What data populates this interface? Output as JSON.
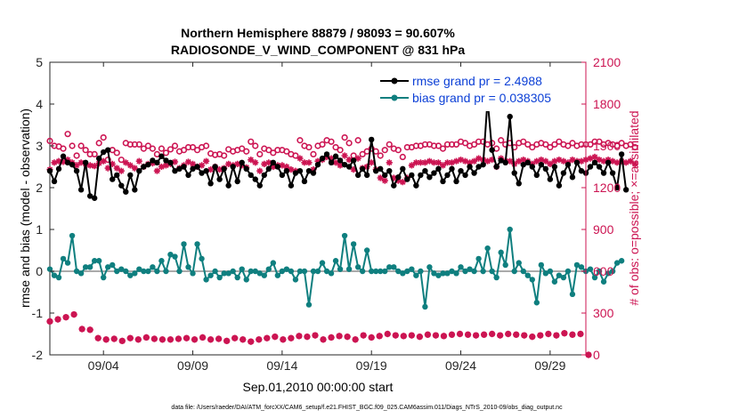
{
  "chart_data": {
    "type": "line",
    "title_line1": "Northern Hemisphere 88879 / 98093 = 90.607%",
    "title_line2": "RADIOSONDE_V_WIND_COMPONENT @ 831 hPa",
    "xlabel": "Sep.01,2010 00:00:00 start",
    "ylabel_left": "rmse and bias (model - observation)",
    "ylabel_right": "# of obs: o=possible; ×=assimilated",
    "footnote": "data file: /Users/raeder/DAI/ATM_forcXX/CAM6_setup/f.e21.FHIST_BGC.f09_025.CAM6assim.011/Diags_NTrS_2010-09/obs_diag_output.nc",
    "xlim": [
      1.0,
      31.0
    ],
    "ylim_left": [
      -2,
      5
    ],
    "ylim_right": [
      0,
      2100
    ],
    "x_ticks": [
      4,
      9,
      14,
      19,
      24,
      29
    ],
    "x_tick_labels": [
      "09/04",
      "09/09",
      "09/14",
      "09/19",
      "09/24",
      "09/29"
    ],
    "y_ticks_left": [
      -2,
      -1,
      0,
      1,
      2,
      3,
      4,
      5
    ],
    "y_tick_labels_left": [
      "-2",
      "-1",
      "0",
      "1",
      "2",
      "3",
      "4",
      "5"
    ],
    "y_ticks_right": [
      0,
      300,
      600,
      900,
      1200,
      1500,
      1800,
      2100
    ],
    "y_tick_labels_right": [
      "0",
      "300",
      "600",
      "900",
      "1200",
      "1500",
      "1800",
      "2100"
    ],
    "x_start": 1.0,
    "x_step": 0.25,
    "legend": [
      {
        "label": "rmse grand pr = 2.4988",
        "color": "#000000"
      },
      {
        "label": "bias grand pr = 0.038305",
        "color": "#0f7f7f"
      }
    ],
    "colors": {
      "rmse": "#000000",
      "bias": "#0f7f7f",
      "obs": "#cc1452",
      "zero_line": "#aaaaaa",
      "legend_text": "#0b3fd6"
    },
    "series": [
      {
        "name": "rmse",
        "values": [
          2.4,
          2.15,
          2.45,
          2.75,
          2.6,
          2.55,
          2.4,
          1.95,
          2.6,
          1.8,
          1.75,
          2.7,
          2.85,
          2.9,
          2.2,
          2.3,
          2.05,
          1.9,
          2.3,
          1.95,
          2.4,
          2.5,
          2.55,
          2.65,
          2.6,
          2.75,
          2.65,
          2.6,
          2.4,
          2.45,
          2.5,
          2.3,
          2.45,
          2.5,
          2.35,
          2.4,
          2.1,
          2.5,
          2.2,
          2.45,
          2.05,
          2.5,
          2.15,
          2.6,
          2.45,
          2.3,
          2.2,
          2.05,
          2.3,
          2.45,
          2.6,
          2.5,
          2.3,
          2.4,
          2.05,
          2.35,
          2.4,
          2.15,
          2.4,
          2.35,
          2.55,
          2.7,
          2.8,
          2.6,
          2.75,
          2.65,
          2.55,
          2.5,
          2.65,
          2.3,
          2.45,
          2.3,
          3.15,
          2.4,
          2.45,
          2.3,
          2.4,
          2.05,
          2.25,
          2.45,
          2.2,
          2.3,
          2.05,
          2.3,
          2.4,
          2.25,
          2.35,
          2.45,
          2.15,
          2.3,
          2.45,
          2.15,
          2.4,
          2.3,
          2.5,
          2.35,
          2.5,
          2.55,
          4.1,
          2.9,
          2.5,
          2.65,
          2.6,
          3.7,
          2.35,
          2.1,
          2.55,
          2.6,
          2.5,
          2.3,
          2.55,
          2.45,
          2.2,
          2.5,
          2.05,
          2.35,
          2.55,
          2.25,
          2.6,
          2.4,
          2.35,
          2.5,
          2.6,
          2.5,
          2.35,
          2.6,
          2.35,
          2.0,
          2.8,
          1.95
        ]
      },
      {
        "name": "bias",
        "values": [
          0.05,
          -0.1,
          -0.15,
          0.3,
          0.2,
          0.85,
          0.0,
          -0.05,
          0.1,
          0.1,
          0.25,
          0.25,
          -0.15,
          0.1,
          0.15,
          0.0,
          0.05,
          0.0,
          -0.1,
          -0.05,
          0.05,
          0.0,
          0.0,
          0.1,
          0.0,
          0.25,
          0.0,
          0.4,
          0.35,
          0.0,
          0.65,
          0.1,
          -0.05,
          0.65,
          0.3,
          -0.2,
          -0.1,
          0.0,
          -0.15,
          -0.05,
          -0.05,
          0.0,
          -0.15,
          0.05,
          -0.2,
          0.0,
          0.0,
          -0.05,
          -0.1,
          0.05,
          0.2,
          -0.1,
          0.0,
          0.05,
          0.0,
          -0.2,
          0.0,
          0.0,
          -0.8,
          0.0,
          0.0,
          0.2,
          0.0,
          -0.05,
          0.25,
          0.05,
          0.85,
          0.05,
          0.65,
          0.1,
          0.0,
          0.5,
          0.0,
          0.0,
          0.0,
          0.0,
          0.1,
          0.1,
          0.0,
          -0.05,
          0.0,
          0.05,
          -0.1,
          0.0,
          -0.85,
          0.1,
          -0.05,
          -0.1,
          -0.05,
          -0.05,
          0.0,
          -0.05,
          0.1,
          0.0,
          0.05,
          0.0,
          0.3,
          0.0,
          0.55,
          0.0,
          -0.15,
          0.45,
          0.15,
          1.0,
          0.0,
          0.2,
          0.0,
          -0.1,
          -0.2,
          -0.75,
          0.15,
          -0.05,
          0.0,
          -0.25,
          -0.1,
          -0.15,
          0.0,
          -0.55,
          0.15,
          0.1,
          0.0,
          0.05,
          -0.15,
          0.0,
          -0.25,
          -0.05,
          0.0,
          0.2,
          0.25
        ]
      },
      {
        "name": "obs_possible",
        "values": [
          1535,
          1500,
          1495,
          1480,
          1585,
          1500,
          1430,
          1500,
          1470,
          1440,
          1440,
          1520,
          1560,
          1400,
          1470,
          1450,
          1400,
          1520,
          1510,
          1510,
          1510,
          1480,
          1500,
          1480,
          1440,
          1480,
          1450,
          1475,
          1500,
          1460,
          1470,
          1490,
          1490,
          1470,
          1490,
          1500,
          1445,
          1435,
          1440,
          1430,
          1475,
          1460,
          1470,
          1480,
          1460,
          1530,
          1500,
          1440,
          1480,
          1470,
          1450,
          1470,
          1470,
          1460,
          1440,
          1430,
          1540,
          1500,
          1490,
          1440,
          1500,
          1510,
          1540,
          1530,
          1490,
          1470,
          1560,
          1520,
          1430,
          1540,
          1440,
          1460,
          1480,
          1460,
          1430,
          1470,
          1510,
          1480,
          1470,
          1420,
          1490,
          1490,
          1500,
          1500,
          1510,
          1510,
          1500,
          1500,
          1480,
          1510,
          1510,
          1510,
          1530,
          1520,
          1500,
          1510,
          1530,
          1530,
          1510,
          1520,
          1480,
          1540,
          1510,
          1520,
          1490,
          1520,
          1530,
          1510,
          1490,
          1510,
          1520,
          1510,
          1490,
          1510,
          1530,
          1510,
          1500,
          1520,
          1500,
          1510,
          1510,
          1510,
          1530,
          1530,
          1510,
          1520,
          1510,
          1500,
          1520,
          1500,
          1510,
          1490
        ]
      },
      {
        "name": "obs_assimilated",
        "values": [
          1330,
          1380,
          1390,
          1385,
          1400,
          1380,
          1360,
          1380,
          1370,
          1360,
          1355,
          1375,
          1390,
          1340,
          1370,
          1340,
          1320,
          1380,
          1360,
          1340,
          1390,
          1350,
          1370,
          1375,
          1320,
          1350,
          1360,
          1370,
          1385,
          1340,
          1360,
          1385,
          1370,
          1350,
          1360,
          1390,
          1330,
          1350,
          1330,
          1340,
          1370,
          1360,
          1370,
          1360,
          1345,
          1400,
          1380,
          1320,
          1370,
          1380,
          1350,
          1360,
          1360,
          1350,
          1330,
          1320,
          1410,
          1380,
          1380,
          1330,
          1390,
          1400,
          1420,
          1410,
          1380,
          1360,
          1430,
          1400,
          1330,
          1410,
          1340,
          1350,
          1380,
          1330,
          1270,
          1250,
          1380,
          1270,
          1250,
          1240,
          1270,
          1360,
          1380,
          1380,
          1380,
          1390,
          1380,
          1380,
          1360,
          1380,
          1380,
          1390,
          1400,
          1390,
          1380,
          1390,
          1410,
          1400,
          1390,
          1400,
          1350,
          1410,
          1390,
          1390,
          1370,
          1390,
          1400,
          1390,
          1370,
          1390,
          1400,
          1390,
          1370,
          1390,
          1400,
          1390,
          1380,
          1400,
          1390,
          1390,
          1400,
          1410,
          1420,
          1400,
          1390,
          1400,
          1390,
          1380,
          1390,
          1380,
          1390,
          1370
        ]
      }
    ],
    "low_obs_values": [
      240,
      255,
      270,
      290,
      185,
      180,
      120,
      110,
      115,
      100,
      120,
      110,
      125,
      115,
      110,
      110,
      115,
      120,
      110,
      125,
      110,
      115,
      100,
      120,
      110,
      95,
      110,
      120,
      130,
      110,
      120,
      135,
      130,
      140,
      110,
      125,
      135,
      130,
      110,
      140,
      125,
      135,
      150,
      140,
      135,
      140,
      130,
      145,
      140,
      135,
      145,
      150,
      145,
      140,
      145,
      150,
      140,
      150,
      145,
      140,
      130,
      140,
      150,
      140,
      155,
      145,
      150,
      0
    ]
  }
}
